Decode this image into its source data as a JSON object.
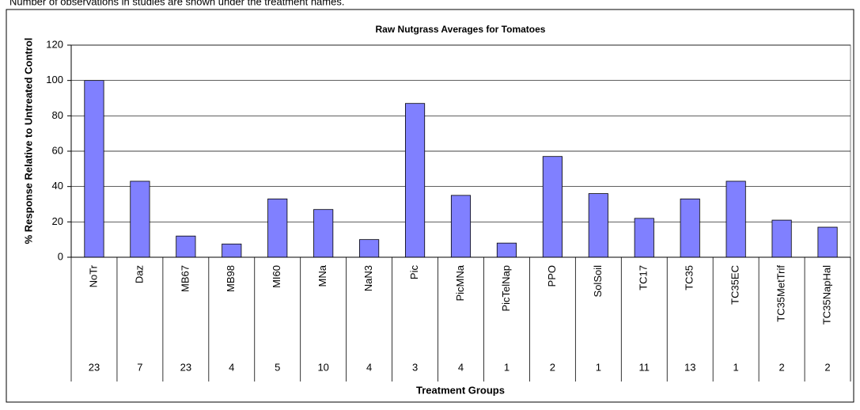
{
  "note": "Number of observations in studies are shown under the treatment names.",
  "chart_data": {
    "type": "bar",
    "title": "Raw Nutgrass Averages for Tomatoes",
    "y_label": "% Response Relative to Untreated Control",
    "x_label": "Treatment Groups",
    "categories": [
      "NoTr",
      "Daz",
      "MB67",
      "MB98",
      "MI60",
      "MNa",
      "NaN3",
      "Pic",
      "PicMNa",
      "PicTelNap",
      "PPO",
      "SolSoil",
      "TC17",
      "TC35",
      "TC35EC",
      "TC35MetTrif",
      "TC35NapHal"
    ],
    "values": [
      100,
      43,
      12,
      7.5,
      33,
      27,
      10,
      87,
      35,
      8,
      57,
      36,
      22,
      33,
      43,
      21,
      17
    ],
    "observations": [
      23,
      7,
      23,
      4,
      5,
      10,
      4,
      3,
      4,
      1,
      2,
      1,
      11,
      13,
      1,
      2,
      2
    ],
    "color": "#8080ff",
    "ylim": [
      0,
      120
    ],
    "yticks": [
      0,
      20,
      40,
      60,
      80,
      100,
      120
    ],
    "grid": true
  }
}
